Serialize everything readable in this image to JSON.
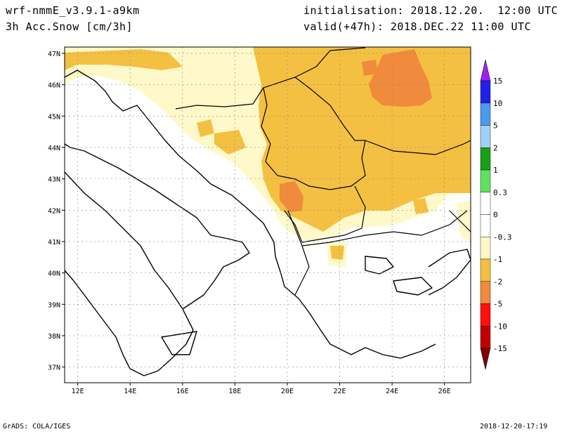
{
  "header": {
    "model": "wrf-nmmE_v3.9.1-a9km",
    "field": "3h Acc.Snow [cm/3h]",
    "initialisation": "initialisation: 2018.12.20.  12:00 UTC",
    "valid": "valid(+47h): 2018.DEC.22 11:00 UTC"
  },
  "footer": {
    "left": "GrADS: COLA/IGES",
    "right": "2018-12-20-17:19"
  },
  "map": {
    "lon_range": [
      11.5,
      27.0
    ],
    "lat_range": [
      36.5,
      47.2
    ],
    "lon_ticks": [
      {
        "v": 12,
        "label": "12E"
      },
      {
        "v": 14,
        "label": "14E"
      },
      {
        "v": 16,
        "label": "16E"
      },
      {
        "v": 18,
        "label": "18E"
      },
      {
        "v": 20,
        "label": "20E"
      },
      {
        "v": 22,
        "label": "22E"
      },
      {
        "v": 24,
        "label": "24E"
      },
      {
        "v": 26,
        "label": "26E"
      }
    ],
    "lat_ticks": [
      {
        "v": 37,
        "label": "37N"
      },
      {
        "v": 38,
        "label": "38N"
      },
      {
        "v": 39,
        "label": "39N"
      },
      {
        "v": 40,
        "label": "40N"
      },
      {
        "v": 41,
        "label": "41N"
      },
      {
        "v": 42,
        "label": "42N"
      },
      {
        "v": 43,
        "label": "43N"
      },
      {
        "v": 44,
        "label": "44N"
      },
      {
        "v": 45,
        "label": "45N"
      },
      {
        "v": 46,
        "label": "46N"
      },
      {
        "v": 47,
        "label": "47N"
      }
    ],
    "grid": true,
    "fill_colors": {
      "light": "#fff8c8",
      "medium": "#f4c042",
      "dark": "#f08a3c"
    }
  },
  "colorbar": {
    "labels": [
      "15",
      "10",
      "5",
      "2",
      "1",
      "0.3",
      "0",
      "-0.3",
      "-1",
      "-2",
      "-5",
      "-10",
      "-15"
    ],
    "colors": [
      "#2020e8",
      "#4a9aee",
      "#a0d0f8",
      "#18a018",
      "#60e060",
      "#ffffff",
      "#ffffff",
      "#fff8c8",
      "#f4c042",
      "#f08a3c",
      "#ff1010",
      "#c00000"
    ],
    "top_arrow_color": "#a020f0",
    "bottom_arrow_color": "#800000"
  }
}
